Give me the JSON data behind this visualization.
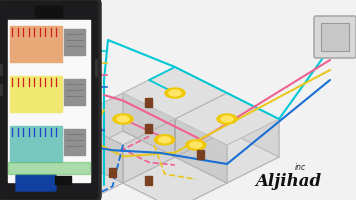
{
  "bg_color": "#f2f2f2",
  "phone_bg": "#1c1c1e",
  "phone_screen_bg": "#f8f8f8",
  "wall_top": "#e0e0e0",
  "wall_front": "#cccccc",
  "wall_side": "#d5d5d5",
  "wall_edge": "#aaaaaa",
  "lamp_color": "#f0c800",
  "lamp_inner": "#ffe566",
  "switch_color": "#7a4020",
  "wire_cyan": "#00c8d4",
  "wire_pink": "#f06090",
  "wire_yellow": "#e8c820",
  "wire_blue": "#1a6fd4",
  "wire_teal": "#20b090",
  "panel_colors": [
    "#e8a878",
    "#f0e870",
    "#78c8c0"
  ],
  "panel_red_lines": "#cc2020",
  "panel_blue_lines": "#2040cc",
  "panel_gray": "#909090",
  "phone_edge": "#2a2a2a",
  "circuit_bg": "#f5f5f5",
  "breaker_blue": "#1040a0",
  "watermark": "Aljihad",
  "watermark_sub": "inc",
  "switch_panel_bg": "#d8d8d8",
  "switch_panel_border": "#aaaaaa"
}
